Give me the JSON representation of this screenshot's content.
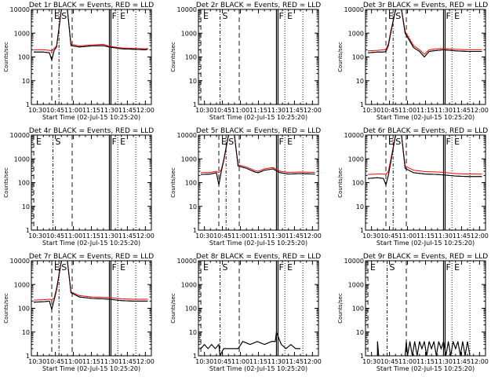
{
  "common": {
    "title_suffix": " BLACK = Events, RED = LLD",
    "xlabel": "Start Time (02-Jul-15 10:25:20)",
    "ylabel": "Counts/sec",
    "x_ticks": [
      "10:30",
      "10:45",
      "11:00",
      "11:15",
      "11:30",
      "11:45",
      "12:00"
    ],
    "y_ticks": [
      "1",
      "10",
      "100",
      "1000",
      "10000"
    ],
    "markers": {
      "E": "E",
      "S": "S",
      "F": "F"
    },
    "colors": {
      "events": "#000000",
      "lld": "#ff0000"
    }
  },
  "chart_data": [
    {
      "type": "line",
      "title": "Det 1r BLACK = Events, RED = LLD",
      "xlabel": "Start Time (02-Jul-15 10:25:20)",
      "ylabel": "Counts/sec",
      "scale": "log",
      "ylim": [
        1,
        10000
      ],
      "x_range": [
        "10:25",
        "12:05"
      ],
      "events_present": true,
      "lld_present": true,
      "series": [
        {
          "name": "Events",
          "x": [
            "10:27",
            "10:35",
            "10:40",
            "10:42",
            "10:44",
            "10:46",
            "10:50",
            "10:55",
            "10:58",
            "11:05",
            "11:15",
            "11:25",
            "11:30",
            "11:40",
            "11:50",
            "12:00",
            "12:02"
          ],
          "values": [
            160,
            160,
            150,
            75,
            190,
            260,
            10000,
            10000,
            300,
            260,
            290,
            300,
            260,
            220,
            210,
            200,
            210
          ]
        },
        {
          "name": "LLD",
          "x": [
            "10:27",
            "10:35",
            "10:40",
            "10:42",
            "10:44",
            "10:46",
            "10:50",
            "10:55",
            "10:58",
            "11:05",
            "11:15",
            "11:25",
            "11:30",
            "11:40",
            "11:50",
            "12:00",
            "12:02"
          ],
          "values": [
            200,
            200,
            190,
            180,
            230,
            290,
            10000,
            10000,
            340,
            290,
            320,
            340,
            280,
            240,
            230,
            220,
            230
          ]
        }
      ],
      "vertical_lines": [
        {
          "label": "E",
          "x": "10:42",
          "style": "dashed"
        },
        {
          "label": "S",
          "x": "10:48",
          "style": "dash-dot"
        },
        {
          "label": "",
          "x": "10:59",
          "style": "dashed"
        },
        {
          "label": "F",
          "x": "11:30",
          "style": "solid"
        },
        {
          "label": "E",
          "x": "11:37",
          "style": "dotted"
        },
        {
          "label": "",
          "x": "11:52",
          "style": "dotted"
        }
      ]
    },
    {
      "type": "line",
      "title": "Det 2r BLACK = Events, RED = LLD",
      "xlabel": "Start Time (02-Jul-15 10:25:20)",
      "ylabel": "Counts/sec",
      "scale": "log",
      "ylim": [
        1,
        10000
      ],
      "x_range": [
        "10:25",
        "12:05"
      ],
      "events_present": false,
      "lld_present": false,
      "series": [],
      "vertical_lines": [
        {
          "label": "E",
          "x": "10:27",
          "style": "dashed"
        },
        {
          "label": "S",
          "x": "10:43",
          "style": "dash-dot"
        },
        {
          "label": "",
          "x": "10:59",
          "style": "dashed"
        },
        {
          "label": "F",
          "x": "11:30",
          "style": "solid"
        },
        {
          "label": "E",
          "x": "11:37",
          "style": "dotted"
        },
        {
          "label": "",
          "x": "11:52",
          "style": "dotted"
        }
      ]
    },
    {
      "type": "line",
      "title": "Det 3r BLACK = Events, RED = LLD",
      "xlabel": "Start Time (02-Jul-15 10:25:20)",
      "ylabel": "Counts/sec",
      "scale": "log",
      "ylim": [
        1,
        10000
      ],
      "x_range": [
        "10:25",
        "12:05"
      ],
      "events_present": true,
      "lld_present": true,
      "series": [
        {
          "name": "Events",
          "x": [
            "10:27",
            "10:35",
            "10:40",
            "10:42",
            "10:44",
            "10:46",
            "10:50",
            "10:55",
            "10:58",
            "11:05",
            "11:10",
            "11:14",
            "11:18",
            "11:25",
            "11:30",
            "11:40",
            "11:50",
            "12:02"
          ],
          "values": [
            150,
            160,
            160,
            170,
            300,
            1000,
            10000,
            10000,
            1000,
            250,
            170,
            100,
            170,
            190,
            200,
            180,
            170,
            170
          ]
        },
        {
          "name": "LLD",
          "x": [
            "10:27",
            "10:35",
            "10:40",
            "10:42",
            "10:44",
            "10:46",
            "10:50",
            "10:55",
            "10:58",
            "11:05",
            "11:10",
            "11:14",
            "11:18",
            "11:25",
            "11:30",
            "11:40",
            "11:50",
            "12:02"
          ],
          "values": [
            180,
            190,
            200,
            210,
            350,
            1200,
            10000,
            10000,
            1200,
            300,
            200,
            130,
            200,
            220,
            230,
            210,
            200,
            200
          ]
        }
      ],
      "vertical_lines": [
        {
          "label": "E",
          "x": "10:42",
          "style": "dashed"
        },
        {
          "label": "S",
          "x": "10:48",
          "style": "dash-dot"
        },
        {
          "label": "",
          "x": "10:59",
          "style": "dashed"
        },
        {
          "label": "F",
          "x": "11:30",
          "style": "solid"
        },
        {
          "label": "E",
          "x": "11:37",
          "style": "dotted"
        },
        {
          "label": "",
          "x": "11:52",
          "style": "dotted"
        }
      ]
    },
    {
      "type": "line",
      "title": "Det 4r BLACK = Events, RED = LLD",
      "xlabel": "Start Time (02-Jul-15 10:25:20)",
      "ylabel": "Counts/sec",
      "scale": "log",
      "ylim": [
        1,
        10000
      ],
      "x_range": [
        "10:25",
        "12:05"
      ],
      "events_present": false,
      "lld_present": false,
      "series": [],
      "vertical_lines": [
        {
          "label": "E",
          "x": "10:27",
          "style": "dashed"
        },
        {
          "label": "S",
          "x": "10:43",
          "style": "dash-dot"
        },
        {
          "label": "",
          "x": "10:59",
          "style": "dashed"
        },
        {
          "label": "F",
          "x": "11:30",
          "style": "solid"
        },
        {
          "label": "E",
          "x": "11:37",
          "style": "dotted"
        },
        {
          "label": "",
          "x": "11:52",
          "style": "dotted"
        }
      ]
    },
    {
      "type": "line",
      "title": "Det 5r BLACK = Events, RED = LLD",
      "xlabel": "Start Time (02-Jul-15 10:25:20)",
      "ylabel": "Counts/sec",
      "scale": "log",
      "ylim": [
        1,
        10000
      ],
      "x_range": [
        "10:25",
        "12:05"
      ],
      "events_present": true,
      "lld_present": true,
      "series": [
        {
          "name": "Events",
          "x": [
            "10:27",
            "10:35",
            "10:40",
            "10:42",
            "10:44",
            "10:46",
            "10:50",
            "10:55",
            "10:58",
            "11:05",
            "11:12",
            "11:15",
            "11:20",
            "11:27",
            "11:33",
            "11:40",
            "11:50",
            "12:02"
          ],
          "values": [
            220,
            230,
            260,
            80,
            300,
            800,
            10000,
            10000,
            500,
            400,
            280,
            260,
            330,
            380,
            260,
            230,
            240,
            230
          ]
        },
        {
          "name": "LLD",
          "x": [
            "10:27",
            "10:35",
            "10:40",
            "10:42",
            "10:44",
            "10:46",
            "10:50",
            "10:55",
            "10:58",
            "11:05",
            "11:12",
            "11:15",
            "11:20",
            "11:27",
            "11:33",
            "11:40",
            "11:50",
            "12:02"
          ],
          "values": [
            260,
            270,
            300,
            260,
            350,
            900,
            10000,
            10000,
            560,
            450,
            320,
            300,
            380,
            430,
            300,
            270,
            280,
            270
          ]
        }
      ],
      "vertical_lines": [
        {
          "label": "E",
          "x": "10:42",
          "style": "dashed"
        },
        {
          "label": "S",
          "x": "10:48",
          "style": "dash-dot"
        },
        {
          "label": "",
          "x": "10:59",
          "style": "dashed"
        },
        {
          "label": "F",
          "x": "11:30",
          "style": "solid"
        },
        {
          "label": "E",
          "x": "11:37",
          "style": "dotted"
        },
        {
          "label": "",
          "x": "11:52",
          "style": "dotted"
        }
      ]
    },
    {
      "type": "line",
      "title": "Det 6r BLACK = Events, RED = LLD",
      "xlabel": "Start Time (02-Jul-15 10:25:20)",
      "ylabel": "Counts/sec",
      "scale": "log",
      "ylim": [
        1,
        10000
      ],
      "x_range": [
        "10:25",
        "12:05"
      ],
      "events_present": true,
      "lld_present": true,
      "series": [
        {
          "name": "Events",
          "x": [
            "10:27",
            "10:35",
            "10:40",
            "10:42",
            "10:44",
            "10:46",
            "10:50",
            "10:55",
            "10:58",
            "11:05",
            "11:15",
            "11:25",
            "11:30",
            "11:40",
            "11:50",
            "12:02"
          ],
          "values": [
            150,
            160,
            150,
            80,
            200,
            700,
            10000,
            10000,
            400,
            260,
            230,
            220,
            210,
            190,
            180,
            180
          ]
        },
        {
          "name": "LLD",
          "x": [
            "10:27",
            "10:35",
            "10:40",
            "10:42",
            "10:44",
            "10:46",
            "10:50",
            "10:55",
            "10:58",
            "11:05",
            "11:15",
            "11:25",
            "11:30",
            "11:40",
            "11:50",
            "12:02"
          ],
          "values": [
            220,
            230,
            230,
            220,
            300,
            900,
            10000,
            10000,
            500,
            330,
            290,
            280,
            270,
            240,
            230,
            230
          ]
        }
      ],
      "vertical_lines": [
        {
          "label": "E",
          "x": "10:42",
          "style": "dashed"
        },
        {
          "label": "S",
          "x": "10:48",
          "style": "dash-dot"
        },
        {
          "label": "",
          "x": "10:59",
          "style": "dashed"
        },
        {
          "label": "F",
          "x": "11:30",
          "style": "solid"
        },
        {
          "label": "E",
          "x": "11:37",
          "style": "dotted"
        },
        {
          "label": "",
          "x": "11:52",
          "style": "dotted"
        }
      ]
    },
    {
      "type": "line",
      "title": "Det 7r BLACK = Events, RED = LLD",
      "xlabel": "Start Time (02-Jul-15 10:25:20)",
      "ylabel": "Counts/sec",
      "scale": "log",
      "ylim": [
        1,
        10000
      ],
      "x_range": [
        "10:25",
        "12:05"
      ],
      "events_present": true,
      "lld_present": true,
      "series": [
        {
          "name": "Events",
          "x": [
            "10:27",
            "10:35",
            "10:40",
            "10:42",
            "10:44",
            "10:46",
            "10:50",
            "10:55",
            "10:58",
            "11:05",
            "11:15",
            "11:25",
            "11:30",
            "11:40",
            "11:50",
            "12:02"
          ],
          "values": [
            180,
            190,
            200,
            90,
            230,
            600,
            10000,
            10000,
            450,
            300,
            260,
            250,
            240,
            210,
            200,
            200
          ]
        },
        {
          "name": "LLD",
          "x": [
            "10:27",
            "10:35",
            "10:40",
            "10:42",
            "10:44",
            "10:46",
            "10:50",
            "10:55",
            "10:58",
            "11:05",
            "11:15",
            "11:25",
            "11:30",
            "11:40",
            "11:50",
            "12:02"
          ],
          "values": [
            220,
            230,
            240,
            230,
            270,
            700,
            10000,
            10000,
            500,
            340,
            300,
            290,
            280,
            250,
            240,
            240
          ]
        }
      ],
      "vertical_lines": [
        {
          "label": "E",
          "x": "10:42",
          "style": "dashed"
        },
        {
          "label": "S",
          "x": "10:48",
          "style": "dash-dot"
        },
        {
          "label": "",
          "x": "10:59",
          "style": "dashed"
        },
        {
          "label": "F",
          "x": "11:30",
          "style": "solid"
        },
        {
          "label": "E",
          "x": "11:37",
          "style": "dotted"
        },
        {
          "label": "",
          "x": "11:52",
          "style": "dotted"
        }
      ]
    },
    {
      "type": "line",
      "title": "Det 8r BLACK = Events, RED = LLD",
      "xlabel": "Start Time (02-Jul-15 10:25:20)",
      "ylabel": "Counts/sec",
      "scale": "log",
      "ylim": [
        1,
        10000
      ],
      "x_range": [
        "10:25",
        "12:05"
      ],
      "events_present": true,
      "lld_present": false,
      "series": [
        {
          "name": "Events",
          "x": [
            "10:27",
            "10:30",
            "10:33",
            "10:36",
            "10:39",
            "10:42",
            "10:43",
            "10:46",
            "10:50",
            "10:55",
            "10:58",
            "11:02",
            "11:08",
            "11:14",
            "11:20",
            "11:26",
            "11:29",
            "11:30",
            "11:34",
            "11:38",
            "11:42",
            "11:46",
            "11:50"
          ],
          "values": [
            2,
            3,
            2,
            3,
            2,
            3,
            1,
            2,
            2,
            2,
            2,
            4,
            3,
            4,
            3,
            4,
            4,
            10,
            3,
            2,
            3,
            2,
            2
          ]
        }
      ],
      "vertical_lines": [
        {
          "label": "E",
          "x": "10:27",
          "style": "dashed"
        },
        {
          "label": "S",
          "x": "10:43",
          "style": "dash-dot"
        },
        {
          "label": "",
          "x": "10:59",
          "style": "dashed"
        },
        {
          "label": "F",
          "x": "11:30",
          "style": "solid"
        },
        {
          "label": "E",
          "x": "11:37",
          "style": "dotted"
        },
        {
          "label": "",
          "x": "11:52",
          "style": "dotted"
        }
      ]
    },
    {
      "type": "line",
      "title": "Det 9r BLACK = Events, RED = LLD",
      "xlabel": "Start Time (02-Jul-15 10:25:20)",
      "ylabel": "Counts/sec",
      "scale": "log",
      "ylim": [
        1,
        10000
      ],
      "x_range": [
        "10:25",
        "12:05"
      ],
      "events_present": true,
      "lld_present": false,
      "series": [
        {
          "name": "Events",
          "x": [
            "10:35",
            "10:35",
            "10:36",
            "10:58",
            "10:59",
            "11:00",
            "11:02",
            "11:04",
            "11:06",
            "11:08",
            "11:10",
            "11:12",
            "11:14",
            "11:16",
            "11:18",
            "11:20",
            "11:22",
            "11:24",
            "11:26",
            "11:28",
            "11:30",
            "11:32",
            "11:34",
            "11:36",
            "11:38",
            "11:40",
            "11:42",
            "11:44",
            "11:46",
            "11:48",
            "11:50",
            "11:52"
          ],
          "values": [
            1,
            4,
            1,
            1,
            4,
            1,
            4,
            1,
            4,
            1,
            4,
            2,
            4,
            1,
            4,
            2,
            4,
            1,
            4,
            2,
            4,
            1,
            4,
            1,
            4,
            2,
            4,
            1,
            4,
            1,
            4,
            1
          ]
        }
      ],
      "vertical_lines": [
        {
          "label": "E",
          "x": "10:27",
          "style": "dashed"
        },
        {
          "label": "S",
          "x": "10:43",
          "style": "dash-dot"
        },
        {
          "label": "",
          "x": "10:59",
          "style": "dashed"
        },
        {
          "label": "F",
          "x": "11:30",
          "style": "solid"
        },
        {
          "label": "E",
          "x": "11:37",
          "style": "dotted"
        },
        {
          "label": "",
          "x": "11:52",
          "style": "dotted"
        }
      ]
    }
  ]
}
